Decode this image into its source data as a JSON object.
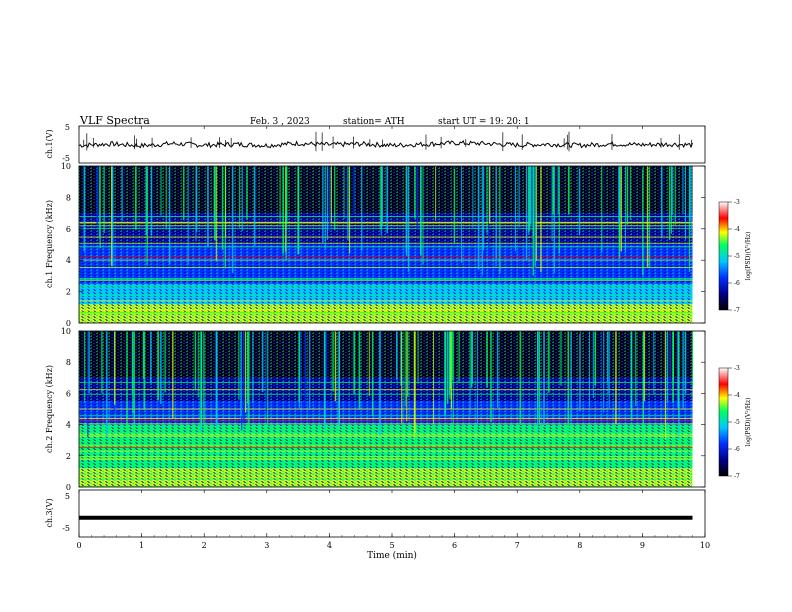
{
  "header": {
    "title": "VLF Spectra",
    "date": "Feb. 3  , 2023",
    "station": "station= ATH",
    "start": "start UT =   19: 20: 1"
  },
  "chart_data": [
    {
      "type": "line",
      "panel": "ch1-waveform",
      "ylabel": "ch.1(V)",
      "ylim": [
        -5,
        5
      ],
      "y_ticks": [
        "5",
        "-5"
      ],
      "x": [
        0,
        0.5,
        1,
        1.5,
        2,
        2.5,
        3,
        3.5,
        4,
        4.5,
        5,
        5.5,
        6,
        6.5,
        7,
        7.5,
        8,
        8.5,
        9,
        9.5,
        9.8
      ],
      "values": [
        -0.3,
        0.2,
        -0.4,
        0.3,
        -0.2,
        0.1,
        -0.3,
        0.4,
        -0.1,
        0.2,
        -0.3,
        0.1,
        0.5,
        0.3,
        -0.2,
        0.1,
        -0.3,
        0.2,
        -0.1,
        0.1,
        -0.2
      ]
    },
    {
      "type": "heatmap",
      "panel": "ch1-spectrogram",
      "ylabel": "ch.1 Frequency (kHz)",
      "ylim": [
        0,
        10
      ],
      "y_ticks": [
        "0",
        "2",
        "4",
        "6",
        "8",
        "10"
      ],
      "colorbar": {
        "label": "log(PSD)(V²/Hz)",
        "range": [
          -7,
          -3
        ],
        "ticks": [
          "-3",
          "-4",
          "-5",
          "-6",
          "-7"
        ]
      },
      "bands_khz": [
        {
          "from": 0,
          "to": 1.2,
          "level": -4.2
        },
        {
          "from": 1.2,
          "to": 2.5,
          "level": -5.3
        },
        {
          "from": 2.5,
          "to": 4.0,
          "level": -6.0
        },
        {
          "from": 4.0,
          "to": 5.0,
          "level": -5.7
        },
        {
          "from": 5.0,
          "to": 7.0,
          "level": -6.4
        },
        {
          "from": 7.0,
          "to": 10,
          "level": -6.8
        }
      ]
    },
    {
      "type": "heatmap",
      "panel": "ch2-spectrogram",
      "ylabel": "ch.2 Frequency (kHz)",
      "ylim": [
        0,
        10
      ],
      "y_ticks": [
        "0",
        "2",
        "4",
        "6",
        "8",
        "10"
      ],
      "colorbar": {
        "label": "log(PSD)(V²/Hz)",
        "range": [
          -7,
          -3
        ],
        "ticks": [
          "-3",
          "-4",
          "-5",
          "-6",
          "-7"
        ]
      },
      "bands_khz": [
        {
          "from": 0,
          "to": 1.2,
          "level": -4.4
        },
        {
          "from": 1.2,
          "to": 2.2,
          "level": -4.9
        },
        {
          "from": 2.2,
          "to": 4.0,
          "level": -5.0
        },
        {
          "from": 4.0,
          "to": 5.5,
          "level": -6.0
        },
        {
          "from": 5.5,
          "to": 7.0,
          "level": -6.3
        },
        {
          "from": 7.0,
          "to": 10,
          "level": -6.8
        }
      ]
    },
    {
      "type": "line",
      "panel": "ch3-waveform",
      "ylabel": "ch.3(V)",
      "ylim": [
        -5,
        5
      ],
      "y_ticks": [
        "5",
        "-5"
      ],
      "x": [
        0,
        9.8
      ],
      "values": [
        -1.5,
        -1.5
      ]
    }
  ],
  "x_axis": {
    "label": "Time (min)",
    "range": [
      0,
      10
    ],
    "ticks": [
      "0",
      "1",
      "2",
      "3",
      "4",
      "5",
      "6",
      "7",
      "8",
      "9",
      "10"
    ]
  },
  "colors": {
    "black": "#000000",
    "dark_blue": "#00008b",
    "blue": "#0030ff",
    "cyan": "#00c8ff",
    "green": "#00ff60",
    "yellow": "#ffff00",
    "red": "#ff0000"
  }
}
